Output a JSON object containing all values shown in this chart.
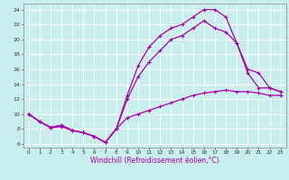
{
  "xlabel": "Windchill (Refroidissement éolien,°C)",
  "xlim": [
    -0.5,
    23.5
  ],
  "ylim": [
    5.5,
    24.8
  ],
  "xtick_vals": [
    0,
    1,
    2,
    3,
    4,
    5,
    6,
    7,
    8,
    9,
    10,
    11,
    12,
    13,
    14,
    15,
    16,
    17,
    18,
    19,
    20,
    21,
    22,
    23
  ],
  "ytick_vals": [
    6,
    8,
    10,
    12,
    14,
    16,
    18,
    20,
    22,
    24
  ],
  "background_color": "#c8eeee",
  "grid_color": "#aadddd",
  "line_color": "#aa00aa",
  "line1_x": [
    0,
    1,
    2,
    3,
    4,
    5,
    6,
    7,
    8,
    9,
    10,
    11,
    12,
    13,
    14,
    15,
    16,
    17,
    18,
    19,
    20,
    21,
    22,
    23
  ],
  "line1_y": [
    10.0,
    9.0,
    8.2,
    8.3,
    7.8,
    7.5,
    7.0,
    6.2,
    8.0,
    9.5,
    10.0,
    10.5,
    11.0,
    11.5,
    12.0,
    12.5,
    12.8,
    13.0,
    13.2,
    13.0,
    13.0,
    12.8,
    12.5,
    12.5
  ],
  "line2_x": [
    0,
    1,
    2,
    3,
    4,
    5,
    6,
    7,
    8,
    9,
    10,
    11,
    12,
    13,
    14,
    15,
    16,
    17,
    18,
    19,
    20,
    21,
    22,
    23
  ],
  "line2_y": [
    10.0,
    9.0,
    8.2,
    8.5,
    7.8,
    7.5,
    7.0,
    6.2,
    8.0,
    12.5,
    16.5,
    19.0,
    20.5,
    21.5,
    22.0,
    23.0,
    24.0,
    24.0,
    23.0,
    19.5,
    16.0,
    15.5,
    13.5,
    13.0
  ],
  "line3_x": [
    0,
    1,
    2,
    3,
    4,
    5,
    6,
    7,
    8,
    9,
    10,
    11,
    12,
    13,
    14,
    15,
    16,
    17,
    18,
    19,
    20,
    21,
    22,
    23
  ],
  "line3_y": [
    10.0,
    9.0,
    8.2,
    8.5,
    7.8,
    7.5,
    7.0,
    6.2,
    8.0,
    12.0,
    15.0,
    17.0,
    18.5,
    20.0,
    20.5,
    21.5,
    22.5,
    21.5,
    21.0,
    19.5,
    15.5,
    13.5,
    13.5,
    13.0
  ],
  "marker": "+",
  "markersize": 3.5,
  "markeredgewidth": 0.8,
  "linewidth": 0.9,
  "tick_labelsize": 4.5,
  "xlabel_fontsize": 5.5,
  "xlabel_color": "#aa00aa"
}
